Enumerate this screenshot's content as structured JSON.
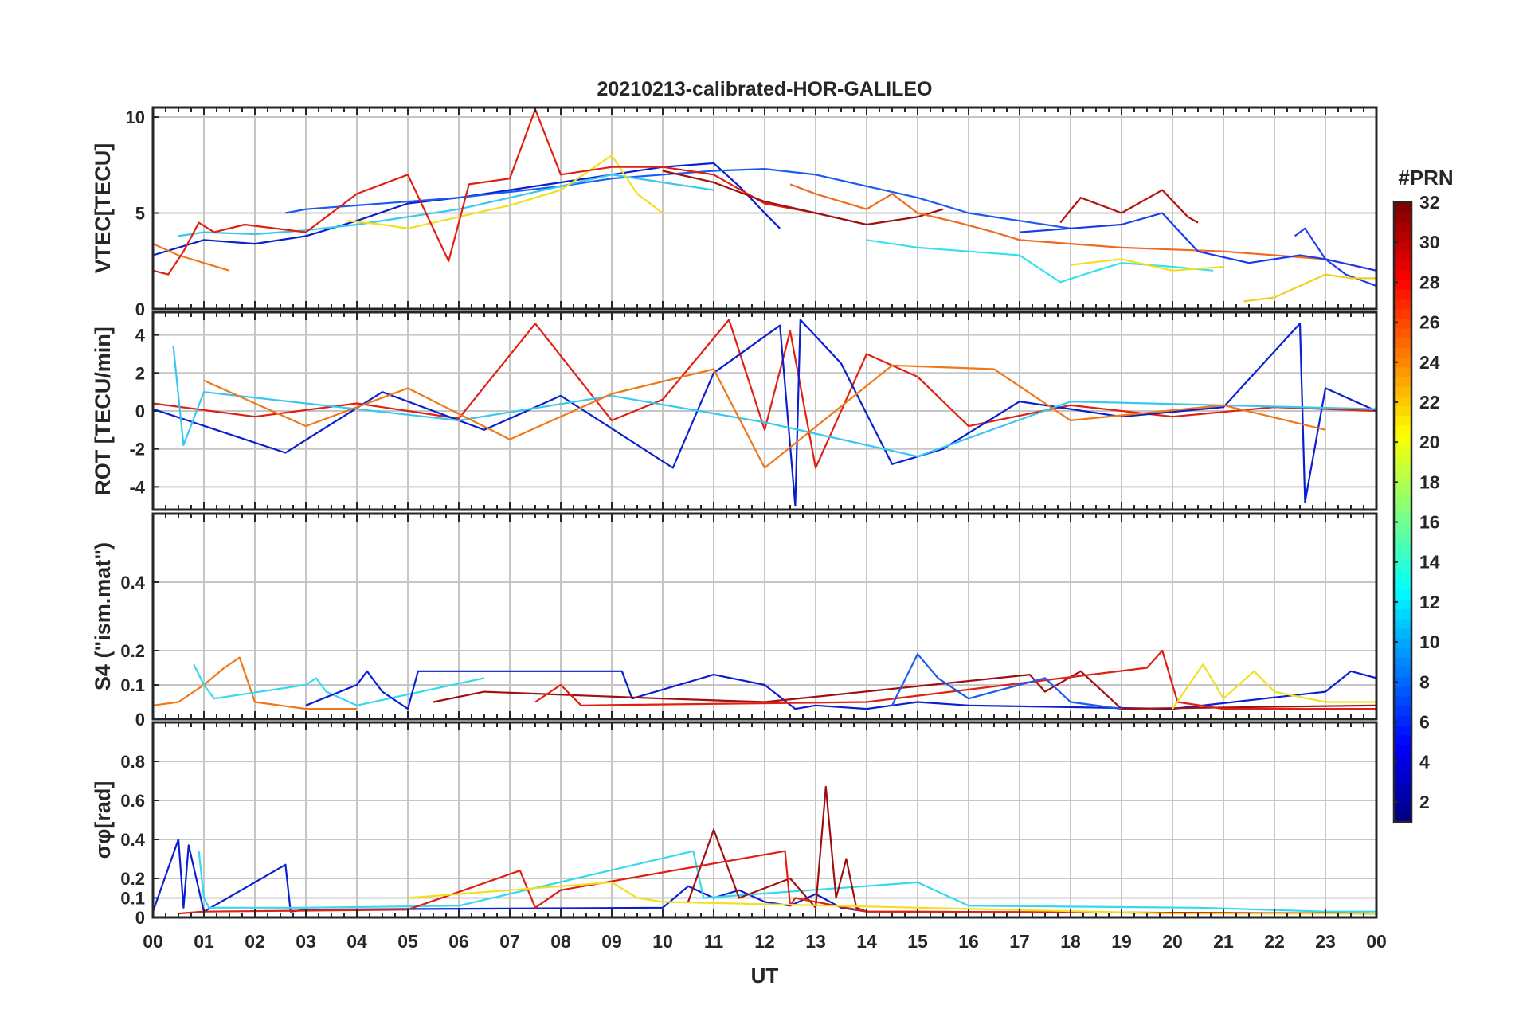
{
  "figure": {
    "title": "20210213-calibrated-HOR-GALILEO",
    "x_axis_label": "UT",
    "x_ticks": [
      "00",
      "01",
      "02",
      "03",
      "04",
      "05",
      "06",
      "07",
      "08",
      "09",
      "10",
      "11",
      "12",
      "13",
      "14",
      "15",
      "16",
      "17",
      "18",
      "19",
      "20",
      "21",
      "22",
      "23",
      "00"
    ],
    "colorbar": {
      "label": "#PRN",
      "range": [
        1,
        32
      ],
      "ticks": [
        "2",
        "4",
        "6",
        "8",
        "10",
        "12",
        "14",
        "16",
        "18",
        "20",
        "22",
        "24",
        "26",
        "28",
        "30",
        "32"
      ],
      "colormap": "jet"
    }
  },
  "chart_data": [
    {
      "type": "line",
      "ylabel": "VTEC[TECU]",
      "ylim": [
        0,
        10.5
      ],
      "yticks": [
        "0",
        "5",
        "10"
      ],
      "ytick_values": [
        0,
        5,
        10
      ],
      "grid": true,
      "series": [
        {
          "color": "#0a1fd0",
          "x": [
            0.0,
            0.5,
            1.0,
            2.0,
            3.0,
            4.0,
            5.0,
            6.0,
            7.0,
            8.0,
            9.0,
            10.0,
            11.0,
            11.5,
            12.0,
            12.3
          ],
          "y": [
            2.8,
            3.2,
            3.6,
            3.4,
            3.8,
            4.6,
            5.5,
            5.8,
            6.2,
            6.6,
            7.0,
            7.4,
            7.6,
            6.4,
            5.0,
            4.2
          ]
        },
        {
          "color": "#1a5cf0",
          "x": [
            2.6,
            3.0,
            4.0,
            5.0,
            6.0,
            7.0,
            8.0,
            9.0,
            10.0,
            11.0,
            12.0,
            13.0,
            14.0,
            15.0,
            16.0,
            17.0,
            18.0
          ],
          "y": [
            5.0,
            5.2,
            5.4,
            5.6,
            5.8,
            6.1,
            6.4,
            6.8,
            7.0,
            7.2,
            7.3,
            7.0,
            6.4,
            5.8,
            5.0,
            4.6,
            4.2
          ]
        },
        {
          "color": "#36c8f0",
          "x": [
            0.5,
            1.0,
            2.0,
            3.0,
            4.0,
            5.0,
            6.0,
            7.0,
            8.0,
            9.0,
            10.0,
            11.0
          ],
          "y": [
            3.8,
            4.0,
            3.9,
            4.1,
            4.4,
            4.8,
            5.2,
            5.8,
            6.4,
            7.0,
            6.6,
            6.2
          ]
        },
        {
          "color": "#f0e020",
          "x": [
            3.8,
            4.5,
            5.0,
            6.0,
            7.0,
            8.0,
            9.0,
            9.5,
            10.0
          ],
          "y": [
            4.6,
            4.4,
            4.2,
            4.8,
            5.4,
            6.2,
            8.0,
            6.0,
            5.0
          ]
        },
        {
          "color": "#f07818",
          "x": [
            0.0,
            0.5,
            1.0,
            1.5
          ],
          "y": [
            3.4,
            2.8,
            2.4,
            2.0
          ]
        },
        {
          "color": "#e02010",
          "x": [
            0.0,
            0.3,
            0.6,
            0.9,
            1.2,
            1.8,
            3.0,
            4.0,
            5.0,
            5.8,
            6.2,
            7.0,
            7.5,
            8.0,
            9.0,
            10.0,
            11.0,
            12.0,
            13.0
          ],
          "y": [
            2.0,
            1.8,
            3.0,
            4.5,
            4.0,
            4.4,
            4.0,
            6.0,
            7.0,
            2.5,
            6.5,
            6.8,
            10.4,
            7.0,
            7.4,
            7.4,
            7.0,
            5.5,
            5.0
          ]
        },
        {
          "color": "#a01010",
          "x": [
            10.0,
            11.0,
            12.0,
            13.0,
            14.0,
            15.0,
            15.5
          ],
          "y": [
            7.2,
            6.6,
            5.6,
            5.0,
            4.4,
            4.8,
            5.2
          ]
        },
        {
          "color": "#f06a20",
          "x": [
            12.5,
            13.0,
            14.0,
            14.5,
            15.0,
            15.8,
            16.5,
            17.0,
            18.0,
            19.0,
            20.0,
            21.0,
            22.0,
            23.0,
            24.0
          ],
          "y": [
            6.5,
            6.0,
            5.2,
            6.0,
            5.0,
            4.5,
            4.0,
            3.6,
            3.4,
            3.2,
            3.1,
            3.0,
            2.8,
            2.6,
            2.0
          ]
        },
        {
          "color": "#36e0f0",
          "x": [
            14.0,
            15.0,
            16.0,
            17.0,
            17.8,
            18.5,
            19.0,
            20.0,
            20.8
          ],
          "y": [
            3.6,
            3.2,
            3.0,
            2.8,
            1.4,
            2.0,
            2.4,
            2.2,
            2.0
          ]
        },
        {
          "color": "#b41010",
          "x": [
            17.8,
            18.2,
            19.0,
            19.8,
            20.3,
            20.5
          ],
          "y": [
            4.5,
            5.8,
            5.0,
            6.2,
            4.8,
            4.5
          ]
        },
        {
          "color": "#1a3cf0",
          "x": [
            17.0,
            18.0,
            19.0,
            19.8,
            20.5,
            21.5,
            22.5,
            23.0,
            23.5,
            24.0
          ],
          "y": [
            4.0,
            4.2,
            4.4,
            5.0,
            3.0,
            2.4,
            2.8,
            2.6,
            2.3,
            2.0
          ]
        },
        {
          "color": "#f0e020",
          "x": [
            18.0,
            19.0,
            20.0,
            21.0
          ],
          "y": [
            2.3,
            2.6,
            2.0,
            2.2
          ]
        },
        {
          "color": "#2040f0",
          "x": [
            22.4,
            22.6,
            23.0,
            23.4,
            24.0
          ],
          "y": [
            3.8,
            4.2,
            2.6,
            1.8,
            1.2
          ]
        },
        {
          "color": "#f0d020",
          "x": [
            21.4,
            22.0,
            23.0,
            23.5,
            24.0
          ],
          "y": [
            0.4,
            0.6,
            1.8,
            1.6,
            1.6
          ]
        }
      ]
    },
    {
      "type": "line",
      "ylabel": "ROT [TECU/min]",
      "ylim": [
        -5.2,
        5.2
      ],
      "yticks": [
        "-4",
        "-2",
        "0",
        "2",
        "4"
      ],
      "ytick_values": [
        -4,
        -2,
        0,
        2,
        4
      ],
      "grid": true,
      "series": [
        {
          "color": "#e02010",
          "x": [
            0.0,
            2.0,
            4.0,
            6.0,
            7.5,
            9.0,
            10.0,
            11.3,
            12.0,
            12.5,
            13.0,
            14.0,
            15.0,
            16.0,
            18.0,
            20.0,
            22.0,
            24.0
          ],
          "y": [
            0.4,
            -0.3,
            0.4,
            -0.4,
            4.6,
            -0.5,
            0.6,
            4.8,
            -1.0,
            4.2,
            -3.0,
            3.0,
            1.8,
            -0.8,
            0.3,
            -0.3,
            0.2,
            0.0
          ]
        },
        {
          "color": "#0a1fd0",
          "x": [
            0.0,
            2.6,
            4.5,
            6.5,
            8.0,
            10.2,
            11.0,
            12.3,
            12.6,
            12.7,
            13.5,
            14.5,
            15.5,
            17.0,
            19.0,
            21.0,
            22.5,
            22.6,
            23.0,
            24.0
          ],
          "y": [
            0.1,
            -2.2,
            1.0,
            -1.0,
            0.8,
            -3.0,
            2.0,
            4.5,
            -5.0,
            4.8,
            2.5,
            -2.8,
            -2.0,
            0.5,
            -0.3,
            0.2,
            4.6,
            -4.8,
            1.2,
            0.0
          ]
        },
        {
          "color": "#36c8f0",
          "x": [
            0.4,
            0.6,
            1.0,
            3.0,
            6.0,
            9.0,
            12.0,
            15.0,
            18.0,
            24.0
          ],
          "y": [
            3.4,
            -1.8,
            1.0,
            0.4,
            -0.5,
            0.8,
            -0.6,
            -2.4,
            0.5,
            0.1
          ]
        },
        {
          "color": "#f07818",
          "x": [
            1.0,
            3.0,
            5.0,
            7.0,
            9.0,
            11.0,
            12.0,
            14.5,
            16.5,
            18.0,
            21.0,
            23.0
          ],
          "y": [
            1.6,
            -0.8,
            1.2,
            -1.5,
            0.9,
            2.2,
            -3.0,
            2.4,
            2.2,
            -0.5,
            0.3,
            -1.0
          ]
        }
      ]
    },
    {
      "type": "line",
      "ylabel": "S4 (\"ism.mat\")",
      "ylim": [
        0,
        0.6
      ],
      "yticks": [
        "0",
        "0.1",
        "0.2",
        "0.4"
      ],
      "ytick_values": [
        0,
        0.1,
        0.2,
        0.4
      ],
      "grid": true,
      "series": [
        {
          "color": "#f07818",
          "x": [
            0.0,
            0.5,
            1.0,
            1.4,
            1.7,
            2.0,
            3.0,
            4.0
          ],
          "y": [
            0.04,
            0.05,
            0.1,
            0.15,
            0.18,
            0.05,
            0.03,
            0.03
          ]
        },
        {
          "color": "#36d8f0",
          "x": [
            0.8,
            1.0,
            1.2,
            3.0,
            3.2,
            3.4,
            4.0,
            6.5
          ],
          "y": [
            0.16,
            0.1,
            0.06,
            0.1,
            0.12,
            0.08,
            0.04,
            0.12
          ]
        },
        {
          "color": "#0a1fd0",
          "x": [
            3.0,
            4.0,
            4.2,
            4.5,
            5.0,
            5.2,
            9.2,
            9.4,
            11.0,
            12.0,
            12.6,
            13.0,
            14.0,
            15.0,
            16.0,
            20.0,
            23.0,
            23.5,
            24.0
          ],
          "y": [
            0.04,
            0.1,
            0.14,
            0.08,
            0.03,
            0.14,
            0.14,
            0.06,
            0.13,
            0.1,
            0.03,
            0.04,
            0.03,
            0.05,
            0.04,
            0.03,
            0.08,
            0.14,
            0.12
          ]
        },
        {
          "color": "#a01010",
          "x": [
            5.5,
            6.5,
            10.0,
            12.0,
            17.2,
            17.5,
            18.2,
            19.0,
            24.0
          ],
          "y": [
            0.05,
            0.08,
            0.06,
            0.05,
            0.13,
            0.08,
            0.14,
            0.03,
            0.04
          ]
        },
        {
          "color": "#e02010",
          "x": [
            7.5,
            8.0,
            8.4,
            14.0,
            19.5,
            19.8,
            20.1,
            21.0,
            24.0
          ],
          "y": [
            0.05,
            0.1,
            0.04,
            0.05,
            0.15,
            0.2,
            0.05,
            0.03,
            0.03
          ]
        },
        {
          "color": "#1a5cf0",
          "x": [
            14.5,
            15.0,
            15.4,
            16.0,
            17.5,
            18.0,
            19.0
          ],
          "y": [
            0.04,
            0.19,
            0.12,
            0.06,
            0.12,
            0.05,
            0.03
          ]
        },
        {
          "color": "#f0e020",
          "x": [
            20.0,
            20.6,
            21.0,
            21.6,
            22.0,
            23.0,
            24.0
          ],
          "y": [
            0.03,
            0.16,
            0.06,
            0.14,
            0.08,
            0.05,
            0.05
          ]
        }
      ]
    },
    {
      "type": "line",
      "ylabel": "σφ[rad]",
      "ylim": [
        0,
        1.0
      ],
      "yticks": [
        "0",
        "0.1",
        "0.2",
        "0.4",
        "0.6",
        "0.8"
      ],
      "ytick_values": [
        0,
        0.1,
        0.2,
        0.4,
        0.6,
        0.8
      ],
      "grid": true,
      "series": [
        {
          "color": "#0a1fd0",
          "x": [
            0.0,
            0.5,
            0.6,
            0.7,
            1.0,
            2.6,
            2.7,
            3.0,
            10.0,
            10.5,
            11.0,
            11.5,
            12.0,
            12.5,
            13.0,
            13.5,
            14.0
          ],
          "y": [
            0.03,
            0.4,
            0.05,
            0.37,
            0.03,
            0.27,
            0.03,
            0.04,
            0.05,
            0.16,
            0.1,
            0.14,
            0.08,
            0.06,
            0.12,
            0.05,
            0.03
          ]
        },
        {
          "color": "#36d8f0",
          "x": [
            0.9,
            1.0,
            1.1,
            3.0,
            6.0,
            10.6,
            10.8,
            15.0,
            16.0,
            20.5,
            23.0,
            24.0
          ],
          "y": [
            0.34,
            0.1,
            0.05,
            0.05,
            0.06,
            0.34,
            0.1,
            0.18,
            0.06,
            0.05,
            0.03,
            0.03
          ]
        },
        {
          "color": "#a01010",
          "x": [
            10.5,
            11.0,
            11.5,
            12.5,
            13.0,
            13.2,
            13.4,
            13.6,
            13.8,
            14.0,
            24.0
          ],
          "y": [
            0.08,
            0.45,
            0.1,
            0.2,
            0.05,
            0.67,
            0.1,
            0.3,
            0.05,
            0.03,
            0.02
          ]
        },
        {
          "color": "#e02010",
          "x": [
            0.5,
            1.0,
            5.0,
            7.2,
            7.5,
            8.0,
            12.4,
            12.5,
            12.6,
            14.0,
            24.0
          ],
          "y": [
            0.02,
            0.03,
            0.04,
            0.24,
            0.05,
            0.14,
            0.34,
            0.06,
            0.1,
            0.03,
            0.02
          ]
        },
        {
          "color": "#f0e020",
          "x": [
            5.0,
            9.0,
            9.5,
            10.0,
            20.0,
            24.0
          ],
          "y": [
            0.1,
            0.18,
            0.1,
            0.08,
            0.02,
            0.02
          ]
        }
      ]
    }
  ]
}
